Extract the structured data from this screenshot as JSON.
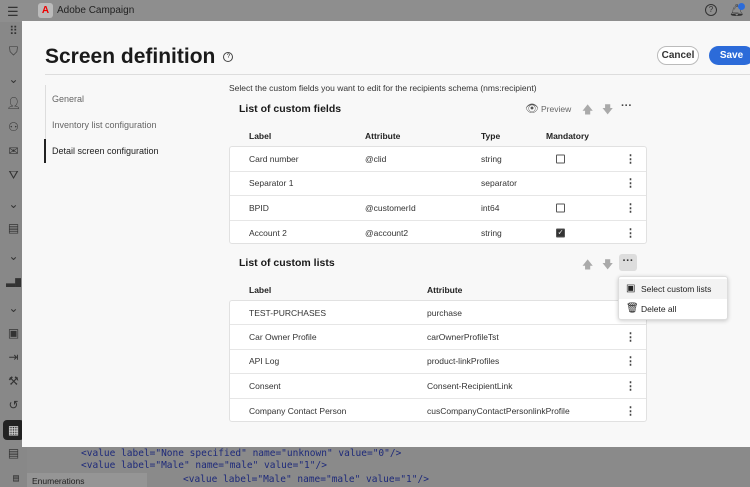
{
  "app": {
    "title": "Adobe Campaign",
    "notification_color": "#2c6bd9"
  },
  "code_lines": [
    "<value label=\"None specified\" name=\"unknown\" value=\"0\"/>",
    "<value label=\"Male\" name=\"male\" value=\"1\"/>",
    "<value label=\"Male\" name=\"male\" value=\"1\"/>"
  ],
  "bottom_tab": "Enumerations",
  "modal": {
    "title": "Screen definition",
    "cancel": "Cancel",
    "save": "Save",
    "accent": "#2c6bd9",
    "nav": [
      {
        "label": "General"
      },
      {
        "label": "Inventory list configuration"
      },
      {
        "label": "Detail screen configuration",
        "active": true
      }
    ],
    "instruction": "Select the custom fields you want to edit for the recipients schema (nms:recipient)",
    "fields": {
      "title": "List of custom fields",
      "preview": "Preview",
      "headers": [
        "Label",
        "Attribute",
        "Type",
        "Mandatory"
      ],
      "rows": [
        {
          "label": "Card number",
          "attribute": "@clid",
          "type": "string",
          "mandatory": false
        },
        {
          "label": "Separator 1",
          "attribute": "",
          "type": "separator",
          "mandatory": null
        },
        {
          "label": "BPID",
          "attribute": "@customerId",
          "type": "int64",
          "mandatory": false
        },
        {
          "label": "Account 2",
          "attribute": "@account2",
          "type": "string",
          "mandatory": true
        }
      ]
    },
    "lists": {
      "title": "List of custom lists",
      "headers": [
        "Label",
        "Attribute"
      ],
      "rows": [
        {
          "label": "TEST-PURCHASES",
          "attribute": "purchase"
        },
        {
          "label": "Car Owner Profile",
          "attribute": "carOwnerProfileTst"
        },
        {
          "label": "API Log",
          "attribute": "product-linkProfiles"
        },
        {
          "label": "Consent",
          "attribute": "Consent-RecipientLink"
        },
        {
          "label": "Company Contact Person",
          "attribute": "cusCompanyContactPersonlinkProfile"
        }
      ],
      "menu": [
        {
          "label": "Select custom lists",
          "icon": "select-list-icon"
        },
        {
          "label": "Delete all",
          "icon": "trash-icon"
        }
      ]
    }
  }
}
